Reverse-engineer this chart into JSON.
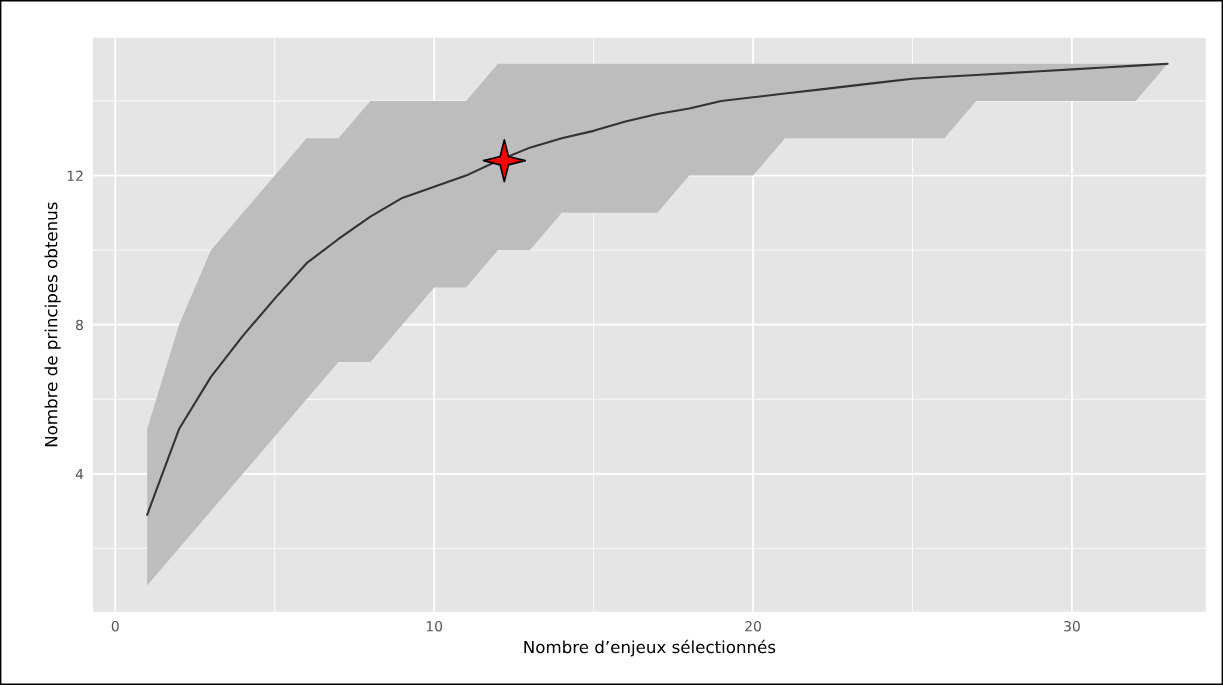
{
  "chart_data": {
    "type": "line",
    "xlabel": "Nombre d’enjeux sélectionnés",
    "ylabel": "Nombre de principes obtenus",
    "xlim": [
      -0.7,
      34.2
    ],
    "ylim": [
      0.3,
      15.7
    ],
    "xticks": [
      0,
      10,
      20,
      30
    ],
    "yticks": [
      4,
      8,
      12
    ],
    "grid": true,
    "marker": "none",
    "line_style": "solid",
    "legend": false,
    "series": [
      {
        "color": "#333333",
        "x": [
          1,
          2,
          3,
          4,
          5,
          6,
          7,
          8,
          9,
          10,
          11,
          12,
          13,
          14,
          15,
          16,
          17,
          18,
          19,
          20,
          21,
          22,
          23,
          24,
          25,
          26,
          27,
          28,
          29,
          30,
          31,
          32,
          33
        ],
        "values": [
          2.9,
          5.2,
          6.6,
          7.7,
          8.7,
          9.65,
          10.3,
          10.9,
          11.4,
          11.7,
          12.0,
          12.4,
          12.75,
          13.0,
          13.2,
          13.45,
          13.65,
          13.8,
          14.0,
          14.1,
          14.2,
          14.3,
          14.4,
          14.5,
          14.6,
          14.65,
          14.7,
          14.75,
          14.8,
          14.85,
          14.9,
          14.95,
          15.0
        ],
        "lower": [
          1,
          2,
          3,
          4,
          5,
          6,
          7,
          7,
          8,
          9,
          9,
          10,
          10,
          11,
          11,
          11,
          11,
          12,
          12,
          12,
          13,
          13,
          13,
          13,
          13,
          13,
          14,
          14,
          14,
          14,
          14,
          14,
          15
        ],
        "upper": [
          5.2,
          8,
          10,
          11,
          12,
          13,
          13,
          14,
          14,
          14,
          14,
          15,
          15,
          15,
          15,
          15,
          15,
          15,
          15,
          15,
          15,
          15,
          15,
          15,
          15,
          15,
          15,
          15,
          15,
          15,
          15,
          15,
          15
        ]
      },
      {
        "type": "scatter",
        "color": "#ff0000",
        "marker": "star",
        "x": [
          12.2
        ],
        "values": [
          12.4
        ]
      }
    ]
  }
}
